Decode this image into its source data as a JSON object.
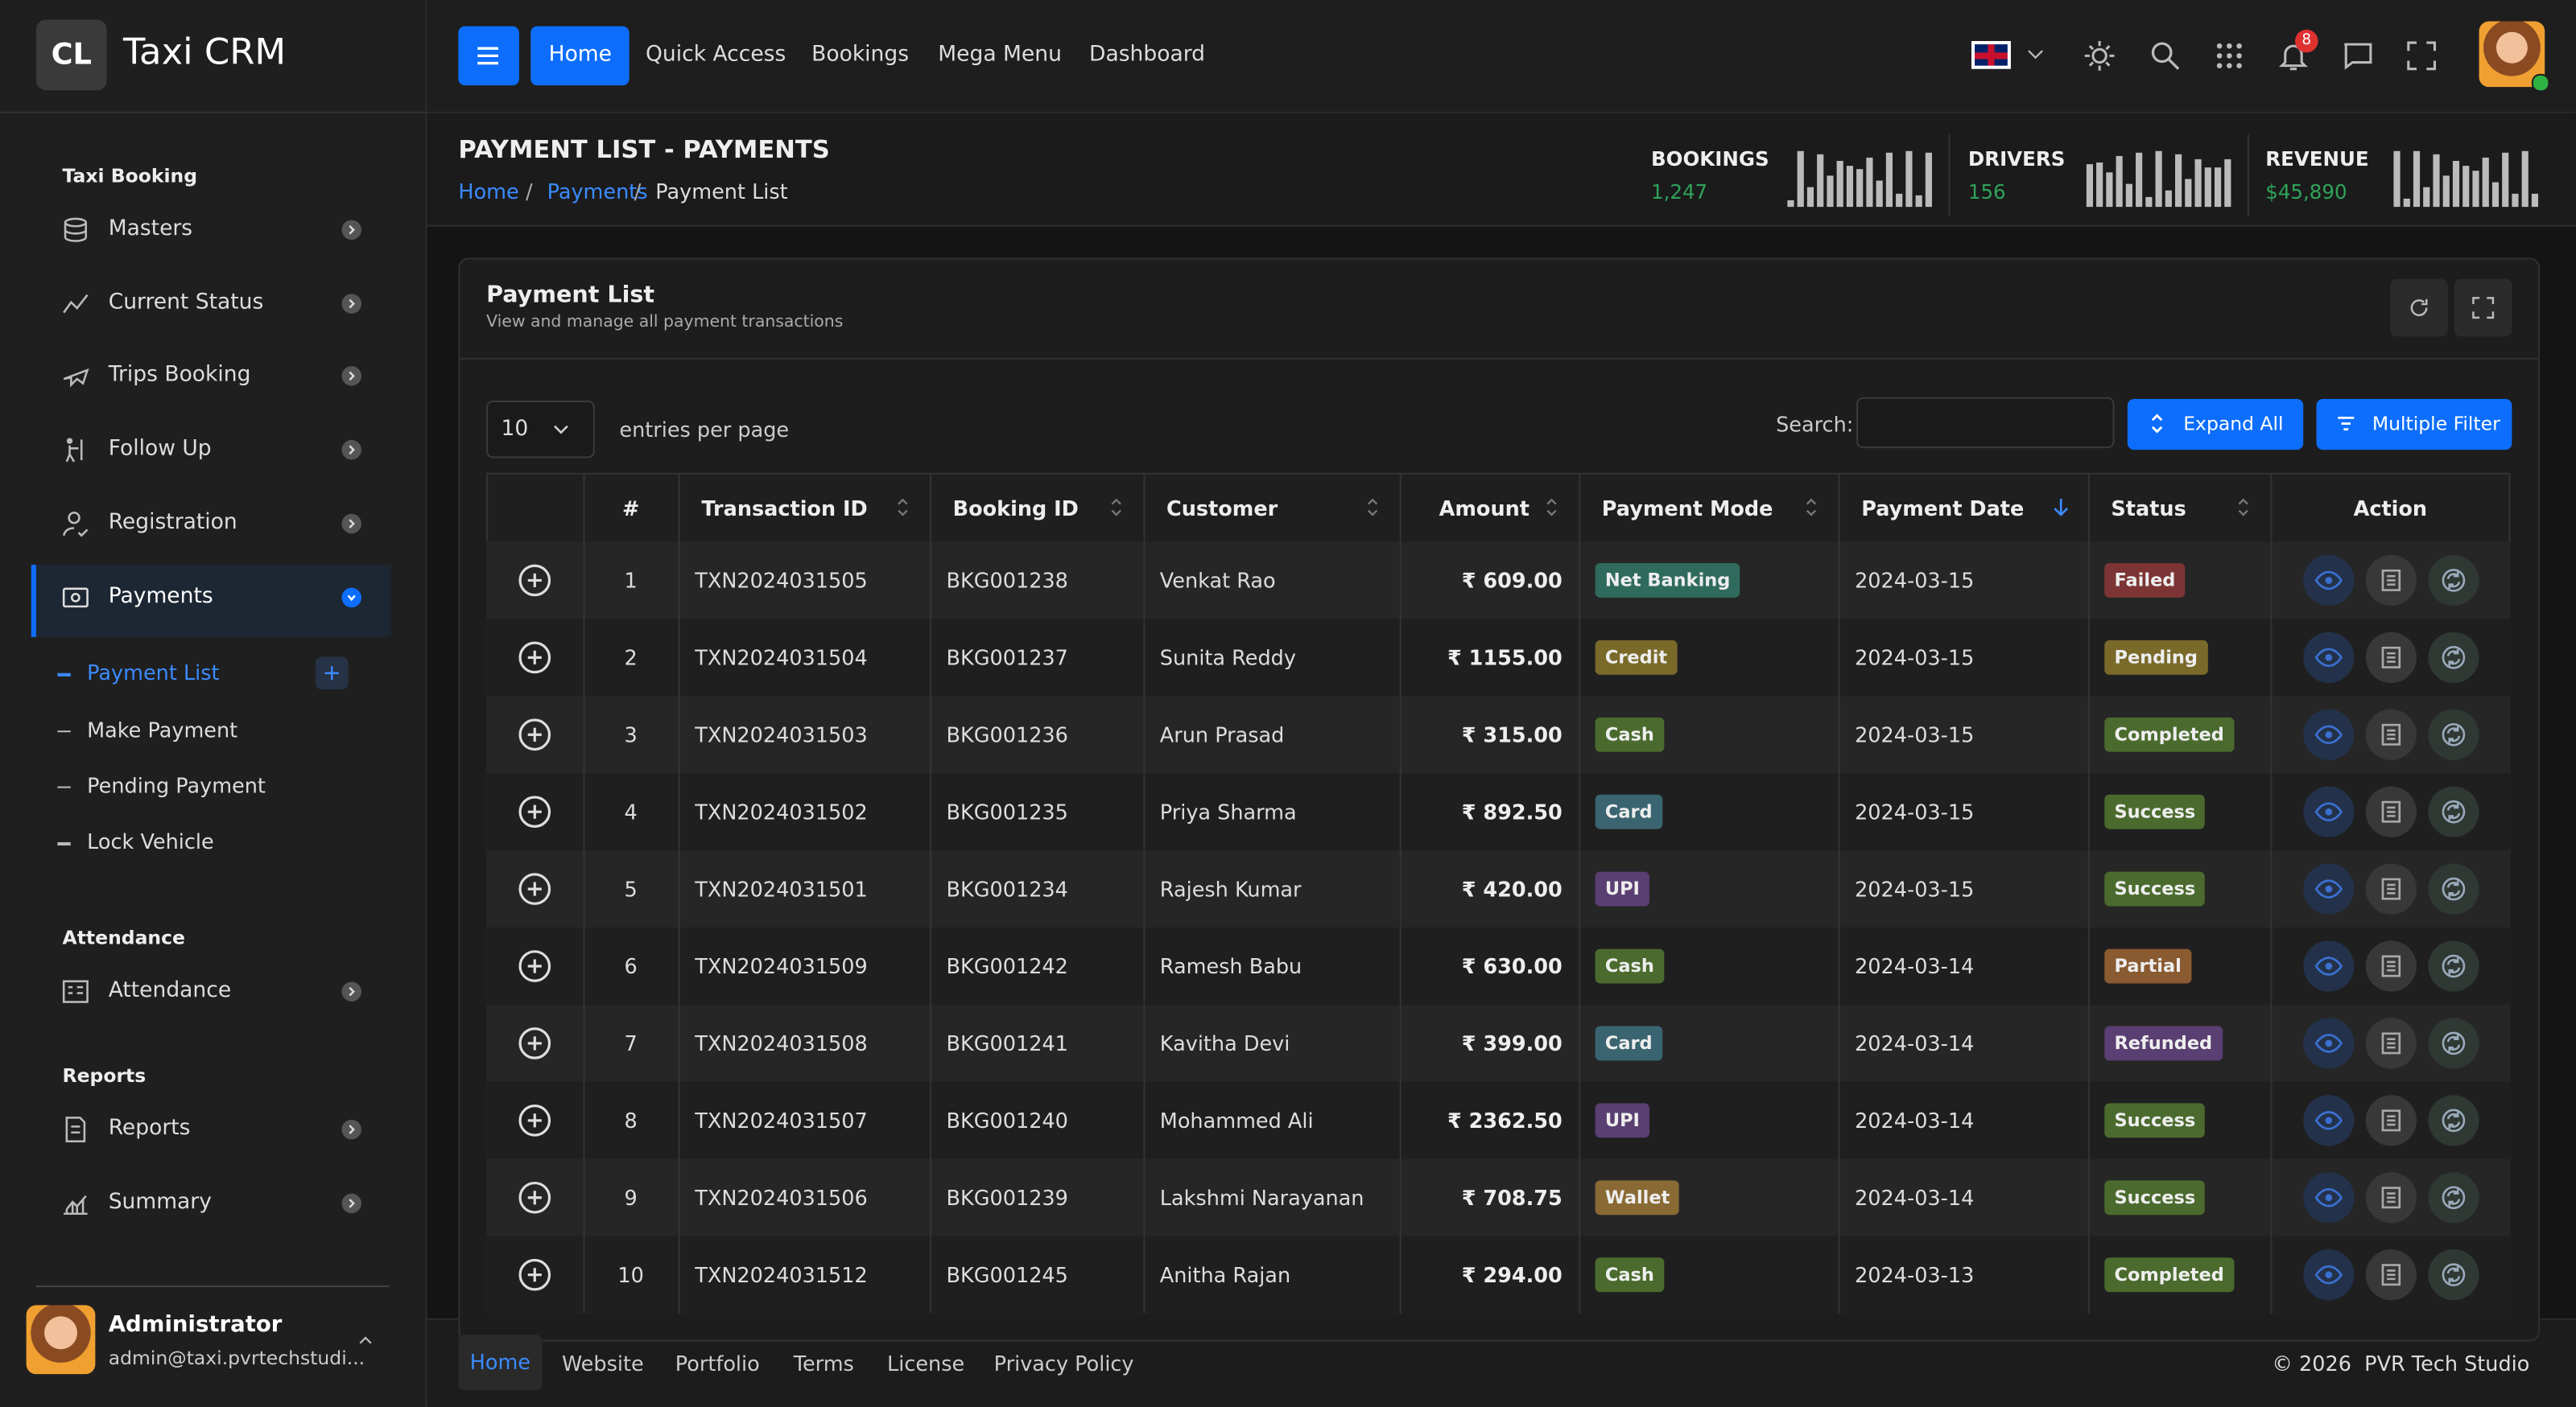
{
  "brand": {
    "logo": "CL",
    "name": "Taxi CRM"
  },
  "topnav": {
    "items": [
      "Home",
      "Quick Access",
      "Bookings",
      "Mega Menu",
      "Dashboard"
    ],
    "notifications": "8"
  },
  "sidebar": {
    "sections": [
      {
        "title": "Taxi Booking",
        "items": [
          {
            "label": "Masters"
          },
          {
            "label": "Current Status"
          },
          {
            "label": "Trips Booking"
          },
          {
            "label": "Follow Up"
          },
          {
            "label": "Registration"
          },
          {
            "label": "Payments",
            "children": [
              "Payment List",
              "Make Payment",
              "Pending Payment",
              "Lock Vehicle"
            ]
          }
        ]
      },
      {
        "title": "Attendance",
        "items": [
          {
            "label": "Attendance"
          }
        ]
      },
      {
        "title": "Reports",
        "items": [
          {
            "label": "Reports"
          },
          {
            "label": "Summary"
          }
        ]
      }
    ],
    "user": {
      "name": "Administrator",
      "email": "admin@taxi.pvrtechstudi..."
    }
  },
  "header": {
    "title": "PAYMENT LIST - PAYMENTS",
    "breadcrumb": [
      "Home",
      "Payments",
      "Payment List"
    ],
    "stats": [
      {
        "label": "BOOKINGS",
        "value": "1,247"
      },
      {
        "label": "DRIVERS",
        "value": "156"
      },
      {
        "label": "REVENUE",
        "value": "$45,890"
      }
    ]
  },
  "card": {
    "title": "Payment List",
    "subtitle": "View and manage all payment transactions",
    "page_size": "10",
    "entries_label": "entries per page",
    "search_label": "Search:",
    "buttons": [
      "Expand All",
      "Multiple Filter"
    ]
  },
  "table": {
    "columns": [
      "#",
      "Transaction ID",
      "Booking ID",
      "Customer",
      "Amount",
      "Payment Mode",
      "Payment Date",
      "Status",
      "Action"
    ],
    "rows": [
      [
        "1",
        "TXN2024031505",
        "BKG001238",
        "Venkat Rao",
        "₹ 609.00",
        "Net Banking",
        "2024-03-15",
        "Failed"
      ],
      [
        "2",
        "TXN2024031504",
        "BKG001237",
        "Sunita Reddy",
        "₹ 1155.00",
        "Credit",
        "2024-03-15",
        "Pending"
      ],
      [
        "3",
        "TXN2024031503",
        "BKG001236",
        "Arun Prasad",
        "₹ 315.00",
        "Cash",
        "2024-03-15",
        "Completed"
      ],
      [
        "4",
        "TXN2024031502",
        "BKG001235",
        "Priya Sharma",
        "₹ 892.50",
        "Card",
        "2024-03-15",
        "Success"
      ],
      [
        "5",
        "TXN2024031501",
        "BKG001234",
        "Rajesh Kumar",
        "₹ 420.00",
        "UPI",
        "2024-03-15",
        "Success"
      ],
      [
        "6",
        "TXN2024031509",
        "BKG001242",
        "Ramesh Babu",
        "₹ 630.00",
        "Cash",
        "2024-03-14",
        "Partial"
      ],
      [
        "7",
        "TXN2024031508",
        "BKG001241",
        "Kavitha Devi",
        "₹ 399.00",
        "Card",
        "2024-03-14",
        "Refunded"
      ],
      [
        "8",
        "TXN2024031507",
        "BKG001240",
        "Mohammed Ali",
        "₹ 2362.50",
        "UPI",
        "2024-03-14",
        "Success"
      ],
      [
        "9",
        "TXN2024031506",
        "BKG001239",
        "Lakshmi Narayanan",
        "₹ 708.75",
        "Wallet",
        "2024-03-14",
        "Success"
      ],
      [
        "10",
        "TXN2024031512",
        "BKG001245",
        "Anitha Rajan",
        "₹ 294.00",
        "Cash",
        "2024-03-13",
        "Completed"
      ]
    ],
    "badge_colors": {
      "Net Banking": "#2f6b5d",
      "Credit": "#7a6a2a",
      "Cash": "#4b6b2e",
      "Card": "#3a6470",
      "UPI": "#5a3f72",
      "Wallet": "#8a6a34",
      "Failed": "#7d3434",
      "Pending": "#7a6a2a",
      "Completed": "#4b6b2e",
      "Success": "#4b6b2e",
      "Partial": "#8a5a30",
      "Refunded": "#5a3f72"
    }
  },
  "footer": {
    "links": [
      "Home",
      "Website",
      "Portfolio",
      "Terms",
      "License",
      "Privacy Policy"
    ],
    "copyright": "© 2026  PVR Tech Studio"
  }
}
